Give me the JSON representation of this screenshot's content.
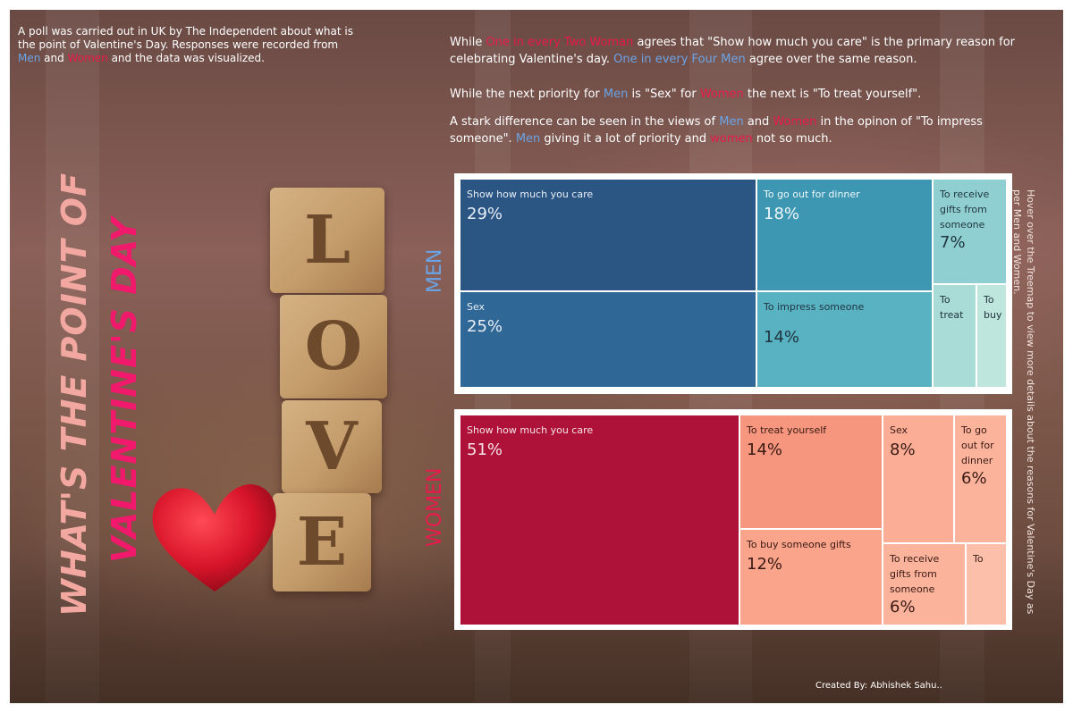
{
  "intro": {
    "part1": "A poll was carried out in UK by The Independent about what is the point of Valentine's Day. Responses were recorded from ",
    "men": "Men",
    "part2": " and ",
    "women": "Women",
    "part3": " and the data was visualized."
  },
  "headline1": {
    "a": "While ",
    "b": "One in every Two Woman",
    "c": " agrees that \"Show how much you care\" is the primary reason for celebrating Valentine's day. ",
    "d": "One in every Four Men",
    "e": " agree over the same reason."
  },
  "headline2": {
    "a": "While the next priority for ",
    "b": "Men",
    "c": " is \"Sex\" for ",
    "d": "Women",
    "e": " the next is \"To treat yourself\"."
  },
  "headline3": {
    "a": "A stark difference can be seen in the views of ",
    "b": "Men",
    "c": " and ",
    "d": "Women",
    "e": " in the opinon of \"To impress someone\". ",
    "f": "Men",
    "g": " giving it a lot of priority and ",
    "h": "women",
    "i": " not so much."
  },
  "title": {
    "line1": "WHAT'S THE POINT OF",
    "line2": "VALENTINE'S DAY"
  },
  "photo": {
    "letters": [
      "L",
      "O",
      "V",
      "E"
    ],
    "heart_icon": "heart-icon"
  },
  "side_note": "Hover over the Treemap to view more details about the reasons for Valentine's Day as per Men and Women.",
  "credit": "Created By: Abhishek Sahu..",
  "colors": {
    "men_label": "#6aa4e6",
    "women_label": "#e8194b",
    "title_line1": "#f2a8a1",
    "title_line2": "#f0196b"
  },
  "chart_data": [
    {
      "type": "treemap",
      "label": "MEN",
      "items": [
        {
          "label": "Show how much you care",
          "value_text": "29%",
          "value": 29,
          "color": "#2b5684",
          "text_color": "#e8eef6"
        },
        {
          "label": "Sex",
          "value_text": "25%",
          "value": 25,
          "color": "#2f6796",
          "text_color": "#e8eef6"
        },
        {
          "label": "To go out for dinner",
          "value_text": "18%",
          "value": 18,
          "color": "#3d97b3",
          "text_color": "#eef7fa"
        },
        {
          "label": "To impress someone",
          "value_text": "14%",
          "value": 14,
          "color": "#59b2c2",
          "text_color": "#1f3440"
        },
        {
          "label": "To receive gifts from someone",
          "value_text": "7%",
          "value": 7,
          "color": "#8fcfd2",
          "text_color": "#1f3440"
        },
        {
          "label": "To treat",
          "value_text": "",
          "value": 4,
          "color": "#a9dcd6",
          "text_color": "#1f3440"
        },
        {
          "label": "To buy",
          "value_text": "",
          "value": 3,
          "color": "#bfe6dc",
          "text_color": "#1f3440"
        }
      ]
    },
    {
      "type": "treemap",
      "label": "WOMEN",
      "items": [
        {
          "label": "Show how much you care",
          "value_text": "51%",
          "value": 51,
          "color": "#ae1239",
          "text_color": "#f7e3e8"
        },
        {
          "label": "To treat yourself",
          "value_text": "14%",
          "value": 14,
          "color": "#f7967e",
          "text_color": "#3a1a14"
        },
        {
          "label": "To buy someone gifts",
          "value_text": "12%",
          "value": 12,
          "color": "#f9a48b",
          "text_color": "#3a1a14"
        },
        {
          "label": "Sex",
          "value_text": "8%",
          "value": 8,
          "color": "#fbae95",
          "text_color": "#3a1a14"
        },
        {
          "label": "To go out for dinner",
          "value_text": "6%",
          "value": 6,
          "color": "#fbb39c",
          "text_color": "#3a1a14"
        },
        {
          "label": "To receive gifts from someone",
          "value_text": "6%",
          "value": 6,
          "color": "#fbb39c",
          "text_color": "#3a1a14"
        },
        {
          "label": "To",
          "value_text": "",
          "value": 3,
          "color": "#fcbfaa",
          "text_color": "#3a1a14"
        }
      ]
    }
  ]
}
